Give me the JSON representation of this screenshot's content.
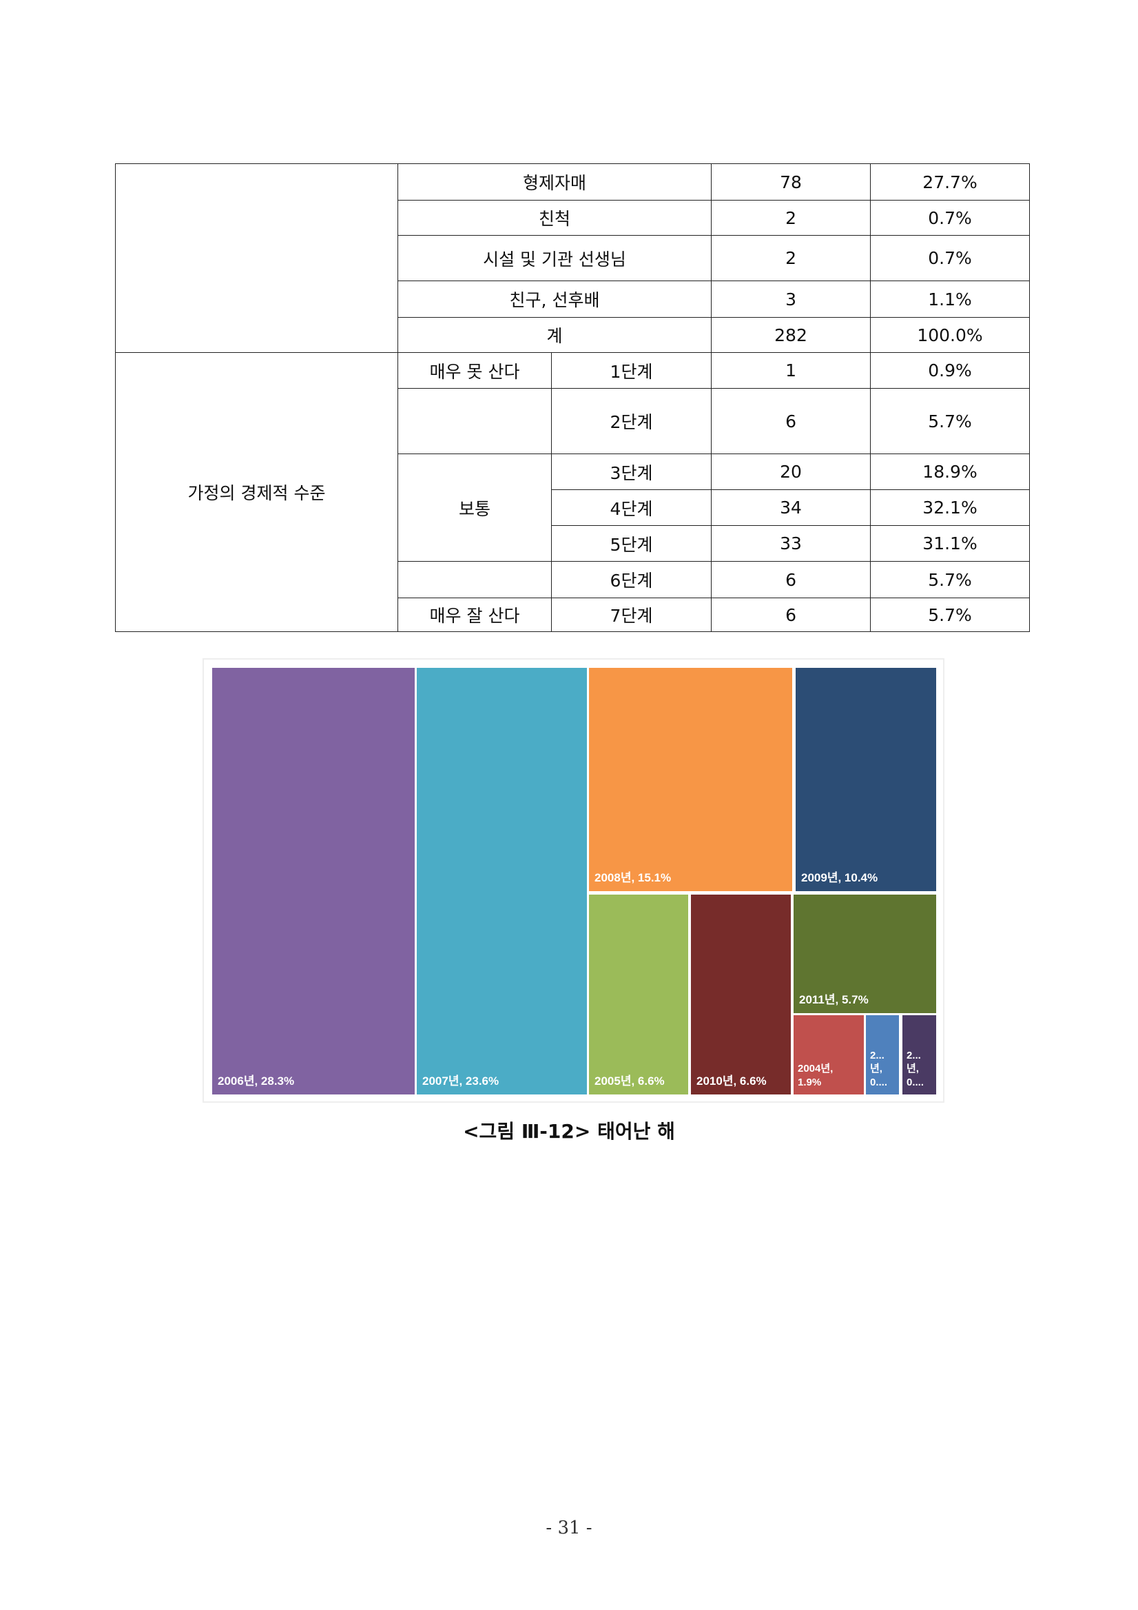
{
  "table": {
    "rows_top": [
      {
        "label": "형제자매",
        "count": "78",
        "percent": "27.7%"
      },
      {
        "label": "친척",
        "count": "2",
        "percent": "0.7%"
      },
      {
        "label": "시설 및 기관 선생님",
        "count": "2",
        "percent": "0.7%"
      },
      {
        "label": "친구, 선후배",
        "count": "3",
        "percent": "1.1%"
      },
      {
        "label": "계",
        "count": "282",
        "percent": "100.0%"
      }
    ],
    "economic": {
      "category": "가정의 경제적 수준",
      "anchor_low": "매우 못 산다",
      "anchor_mid": "보통",
      "anchor_high": "매우 잘 산다",
      "rows": [
        {
          "level": "1단계",
          "count": "1",
          "percent": "0.9%"
        },
        {
          "level": "2단계",
          "count": "6",
          "percent": "5.7%"
        },
        {
          "level": "3단계",
          "count": "20",
          "percent": "18.9%"
        },
        {
          "level": "4단계",
          "count": "34",
          "percent": "32.1%"
        },
        {
          "level": "5단계",
          "count": "33",
          "percent": "31.1%"
        },
        {
          "level": "6단계",
          "count": "6",
          "percent": "5.7%"
        },
        {
          "level": "7단계",
          "count": "6",
          "percent": "5.7%"
        }
      ]
    }
  },
  "chart_data": {
    "type": "treemap",
    "items": [
      {
        "label": "2006년, 28.3%",
        "category": "2006년",
        "value": 28.3,
        "color": "#8063a1"
      },
      {
        "label": "2007년, 23.6%",
        "category": "2007년",
        "value": 23.6,
        "color": "#4bacc6"
      },
      {
        "label": "2008년, 15.1%",
        "category": "2008년",
        "value": 15.1,
        "color": "#f79646"
      },
      {
        "label": "2009년, 10.4%",
        "category": "2009년",
        "value": 10.4,
        "color": "#2c4d75"
      },
      {
        "label": "2005년, 6.6%",
        "category": "2005년",
        "value": 6.6,
        "color": "#9bbb59"
      },
      {
        "label": "2010년, 6.6%",
        "category": "2010년",
        "value": 6.6,
        "color": "#772c2a"
      },
      {
        "label": "2011년, 5.7%",
        "category": "2011년",
        "value": 5.7,
        "color": "#5f7530"
      },
      {
        "label": "2004년,\n1.9%",
        "category": "2004년",
        "value": 1.9,
        "color": "#c0504d"
      },
      {
        "label": "2...\n년,\n0....",
        "value": 0.9,
        "color": "#4f81bd"
      },
      {
        "label": "2...\n년,\n0....",
        "value": 0.9,
        "color": "#4a3a63"
      }
    ]
  },
  "caption": "<그림 Ⅲ-12> 태어난 해",
  "page_number": "- 31 -"
}
